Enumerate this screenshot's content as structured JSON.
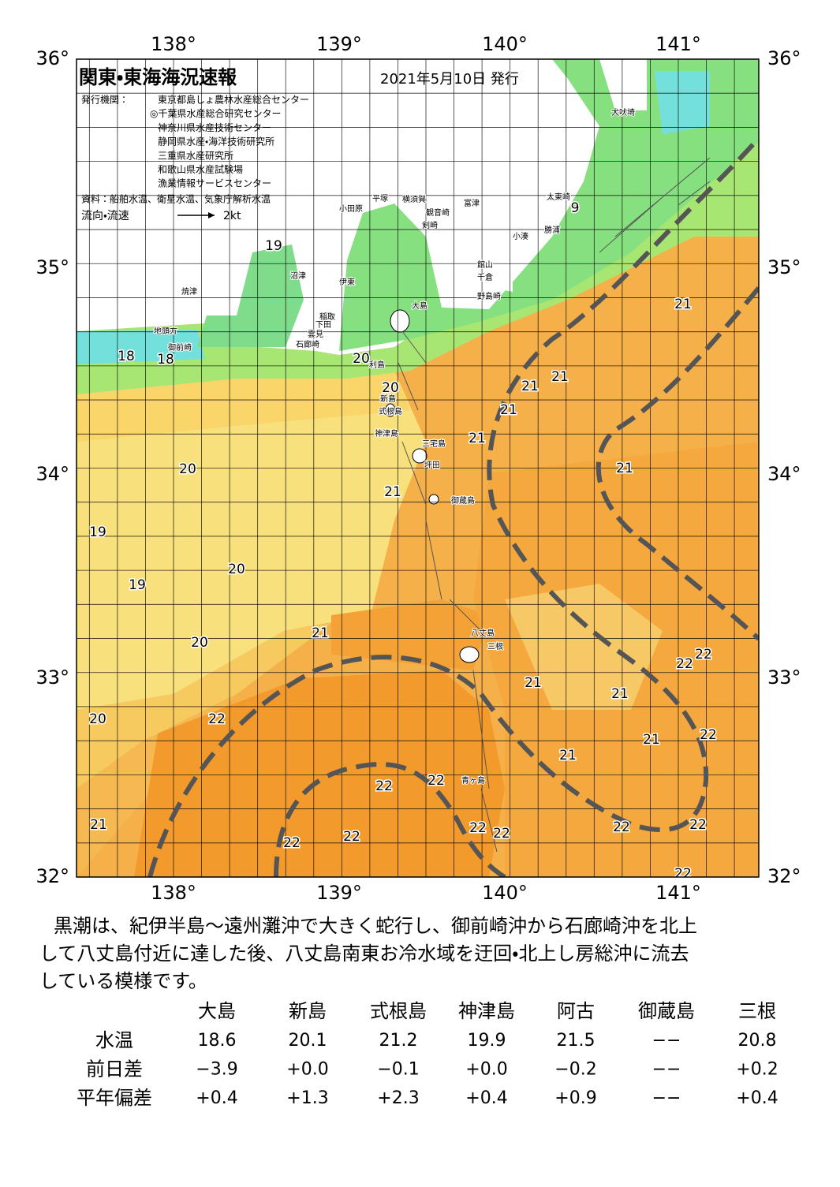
{
  "header": {
    "title": "関東・東海海況速報",
    "date": "2021年5月10日 発行",
    "publisher_label": "発行機関：",
    "publishers": [
      "東京都島しょ農林水産総合センター",
      "◎千葉県水産総合研究センター",
      "神奈川県水産技術センター",
      "静岡県水産・海洋技術研究所",
      "三重県水産研究所",
      "和歌山県水産試験場",
      "漁業情報サービスセンター"
    ],
    "source": "資料：船舶水温、衛星水温、気象庁解析水温",
    "legend_label": "流向・流速",
    "legend_scale": "2kt"
  },
  "axes": {
    "longitudes": [
      "138°",
      "139°",
      "140°",
      "141°"
    ],
    "latitudes": [
      "36°",
      "35°",
      "34°",
      "33°",
      "32°"
    ]
  },
  "temperature_labels": [
    18,
    18,
    20,
    20,
    21,
    21,
    21,
    21,
    21,
    21,
    20,
    21,
    19,
    20,
    19,
    21,
    20,
    22,
    22,
    21,
    21,
    20,
    22,
    21,
    22,
    21,
    22,
    22,
    21,
    22,
    22,
    22,
    22,
    22,
    22,
    22,
    19,
    9
  ],
  "place_labels": [
    "犬吠埼",
    "太東崎",
    "勝浦",
    "小湊",
    "館山",
    "千倉",
    "野島崎",
    "富津",
    "横須賀",
    "観音崎",
    "剣崎",
    "平塚",
    "小田原",
    "沼津",
    "伊東",
    "焼津",
    "地頭方",
    "御前崎",
    "稲取",
    "下田",
    "雲見",
    "石廊崎",
    "大島",
    "利島",
    "新島",
    "式根島",
    "神津島",
    "三宅島",
    "坪田",
    "御蔵島",
    "八丈島",
    "三根",
    "青ヶ島"
  ],
  "description": [
    "黒潮は、紀伊半島～遠州灘沖で大きく蛇行し、御前崎沖から石廊崎沖を北上",
    "して八丈島付近に達した後、八丈島南東お冷水域を迂回・北上し房総沖に流去",
    "している模様です。"
  ],
  "table": {
    "columns": [
      "大島",
      "新島",
      "式根島",
      "神津島",
      "阿古",
      "御蔵島",
      "三根"
    ],
    "rows": [
      {
        "label": "水温",
        "values": [
          "18.6",
          "20.1",
          "21.2",
          "19.9",
          "21.5",
          "−−",
          "20.8"
        ]
      },
      {
        "label": "前日差",
        "values": [
          "−3.9",
          "+0.0",
          "−0.1",
          "+0.0",
          "−0.2",
          "−−",
          "+0.2"
        ]
      },
      {
        "label": "平年偏差",
        "values": [
          "+0.4",
          "+1.3",
          "+2.3",
          "+0.4",
          "+0.9",
          "−−",
          "+0.4"
        ]
      }
    ]
  }
}
